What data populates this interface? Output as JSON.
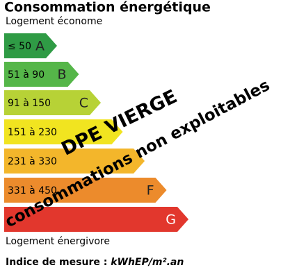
{
  "header": {
    "title": "Consommation énergétique",
    "subtitle": "Logement économe"
  },
  "bands": [
    {
      "range": "≤ 50",
      "letter": "A",
      "color": "#2f9b45"
    },
    {
      "range": "51 à 90",
      "letter": "B",
      "color": "#55b649"
    },
    {
      "range": "91 à 150",
      "letter": "C",
      "color": "#b7d236"
    },
    {
      "range": "151 à 230",
      "color": "#f1e420"
    },
    {
      "range": "231 à 330",
      "color": "#f3b62b"
    },
    {
      "range": "331 à 450",
      "letter": "F",
      "color": "#ec8b2c"
    },
    {
      "letter": "G",
      "color": "#e2372d"
    }
  ],
  "overlay": {
    "stamp": "DPE VIERGE",
    "note": "consommations non exploitables"
  },
  "footer": {
    "bottom_label": "Logement énergivore",
    "index_label": "Indice de mesure :",
    "unit": "kWhEP/m².an"
  }
}
